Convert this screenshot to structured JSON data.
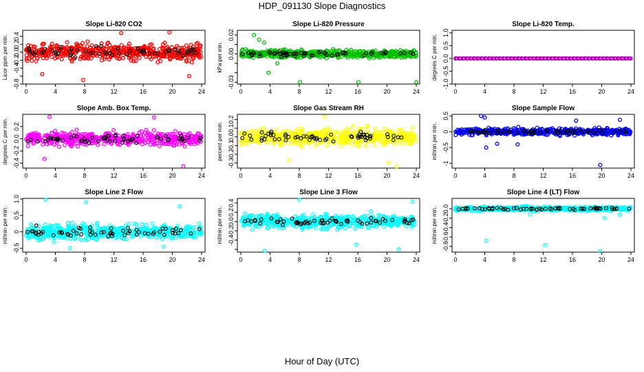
{
  "title": "HDP_091130  Slope Diagnostics",
  "x_axis_title": "Hour of Day (UTC)",
  "x_ticks": [
    0,
    4,
    8,
    12,
    16,
    20,
    24
  ],
  "chart_data": [
    {
      "type": "scatter",
      "title": "Slope Li-820 CO2",
      "ylabel": "Licor ppm per min.",
      "color": "#ff0000",
      "xlim": [
        0,
        24
      ],
      "ylim": [
        -0.8,
        0.55
      ],
      "yticks": [
        -0.8,
        -0.6,
        -0.4,
        -0.2,
        0.0,
        0.2,
        0.4
      ],
      "ytick_labels": [
        "-0.8",
        "",
        "-0.4",
        "-0.2",
        "0.0",
        "0.2",
        "0.4"
      ],
      "spread": 0.2,
      "outliers": [
        [
          13,
          0.48
        ],
        [
          19.6,
          0.5
        ],
        [
          7.8,
          -0.7
        ],
        [
          22.3,
          -0.6
        ],
        [
          2.2,
          -0.55
        ]
      ]
    },
    {
      "type": "scatter",
      "title": "Slope Li-820 Pressure",
      "ylabel": "kPa per min.",
      "color": "#00c000",
      "xlim": [
        0,
        24
      ],
      "ylim": [
        -0.032,
        0.025
      ],
      "yticks": [
        -0.03,
        -0.02,
        -0.01,
        0.0,
        0.01,
        0.02
      ],
      "ytick_labels": [
        "-0.03",
        "",
        "",
        "0.00",
        "",
        "0.02"
      ],
      "spread": 0.004,
      "outliers": [
        [
          1.8,
          0.02
        ],
        [
          2.5,
          0.015
        ],
        [
          3.2,
          0.012
        ],
        [
          3.8,
          -0.02
        ],
        [
          8.1,
          -0.03
        ],
        [
          16.1,
          -0.03
        ],
        [
          24,
          -0.03
        ],
        [
          5,
          -0.01
        ]
      ]
    },
    {
      "type": "scatter",
      "title": "Slope Li-820 Temp.",
      "ylabel": "degrees C per min.",
      "color": "#ff00ff",
      "xlim": [
        0,
        24
      ],
      "ylim": [
        -1,
        1.1
      ],
      "yticks": [
        -1,
        -0.5,
        0,
        0.5,
        1
      ],
      "ytick_labels": [
        "-1.0",
        "-0.5",
        "0.0",
        "0.5",
        "1.0"
      ],
      "spread": 0,
      "outliers": []
    },
    {
      "type": "scatter",
      "title": "Slope Amb. Box Temp.",
      "ylabel": "degrees C per min.",
      "color": "#ff00ff",
      "xlim": [
        0,
        24
      ],
      "ylim": [
        -0.48,
        0.4
      ],
      "yticks": [
        -0.4,
        -0.2,
        0.0,
        0.2
      ],
      "ytick_labels": [
        "-0.4",
        "-0.2",
        "0.0",
        "0.2"
      ],
      "spread": 0.1,
      "outliers": [
        [
          3.2,
          0.36
        ],
        [
          21.5,
          -0.45
        ],
        [
          17.5,
          0.35
        ],
        [
          2.5,
          -0.33
        ]
      ]
    },
    {
      "type": "scatter",
      "title": "Slope Gas Stream RH",
      "ylabel": "percent per min.",
      "color": "#ffff00",
      "xlim": [
        0,
        24
      ],
      "ylim": [
        -0.36,
        0.26
      ],
      "yticks": [
        -0.3,
        -0.2,
        -0.1,
        0.0,
        0.1,
        0.2
      ],
      "ytick_labels": [
        "-0.3",
        "-0.2",
        "-0.1",
        "0.0",
        "0.1",
        "0.2"
      ],
      "spread": 0.09,
      "outliers": [
        [
          21.3,
          -0.34
        ],
        [
          20.2,
          -0.3
        ],
        [
          6.6,
          -0.27
        ],
        [
          11.5,
          0.23
        ]
      ]
    },
    {
      "type": "scatter",
      "title": "Slope Sample Flow",
      "ylabel": "ml/min per min.",
      "color": "#0000ff",
      "xlim": [
        0,
        24
      ],
      "ylim": [
        -1.15,
        0.55
      ],
      "yticks": [
        -1,
        -0.5,
        0,
        0.5
      ],
      "ytick_labels": [
        "-1",
        "-0.5",
        "0",
        "0.5"
      ],
      "spread": 0.1,
      "outliers": [
        [
          19.8,
          -1.05
        ],
        [
          3.5,
          0.5
        ],
        [
          4,
          0.45
        ],
        [
          4.2,
          -0.5
        ],
        [
          16.5,
          0.35
        ],
        [
          22.5,
          0.38
        ],
        [
          8.5,
          -0.4
        ],
        [
          5.7,
          -0.38
        ]
      ]
    },
    {
      "type": "scatter",
      "title": "Slope Line 2 Flow",
      "ylabel": "ml/min per min.",
      "color": "#00ffff",
      "xlim": [
        0,
        24
      ],
      "ylim": [
        -0.62,
        1.02
      ],
      "yticks": [
        -0.5,
        0,
        0.5,
        1
      ],
      "ytick_labels": [
        "-0.5",
        "0",
        "0.5",
        "1.0"
      ],
      "spread": 0.22,
      "outliers": [
        [
          2.7,
          0.98
        ],
        [
          8.2,
          0.9
        ],
        [
          6,
          -0.5
        ],
        [
          18.8,
          -0.45
        ],
        [
          21,
          0.78
        ]
      ]
    },
    {
      "type": "scatter",
      "title": "Slope Line 3 Flow",
      "ylabel": "ml/min per min.",
      "color": "#00ffff",
      "xlim": [
        0,
        24
      ],
      "ylim": [
        -0.66,
        0.5
      ],
      "yticks": [
        -0.6,
        -0.4,
        -0.2,
        0.0,
        0.2,
        0.4
      ],
      "ytick_labels": [
        "",
        "-0.4",
        "-0.2",
        "0.0",
        "0.2",
        "0.4"
      ],
      "spread": 0.14,
      "outliers": [
        [
          3.3,
          -0.63
        ],
        [
          8,
          0.47
        ],
        [
          21.6,
          -0.6
        ],
        [
          23.5,
          0.43
        ],
        [
          15.8,
          -0.5
        ]
      ]
    },
    {
      "type": "scatter",
      "title": "Slope Line 4 (LT) Flow",
      "ylabel": "ml/min per min.",
      "color": "#00ffff",
      "xlim": [
        0,
        24
      ],
      "ylim": [
        -0.92,
        0.22
      ],
      "yticks": [
        -0.8,
        -0.6,
        -0.4,
        -0.2,
        0.0
      ],
      "ytick_labels": [
        "-0.8",
        "-0.6",
        "-0.4",
        "-0.2",
        "0.0"
      ],
      "spread": 0.04,
      "outliers": [
        [
          4.2,
          -0.68
        ],
        [
          12.3,
          -0.77
        ],
        [
          19.8,
          -0.9
        ],
        [
          20.4,
          -0.2
        ],
        [
          10.2,
          -0.12
        ],
        [
          22.5,
          -0.13
        ]
      ]
    }
  ]
}
